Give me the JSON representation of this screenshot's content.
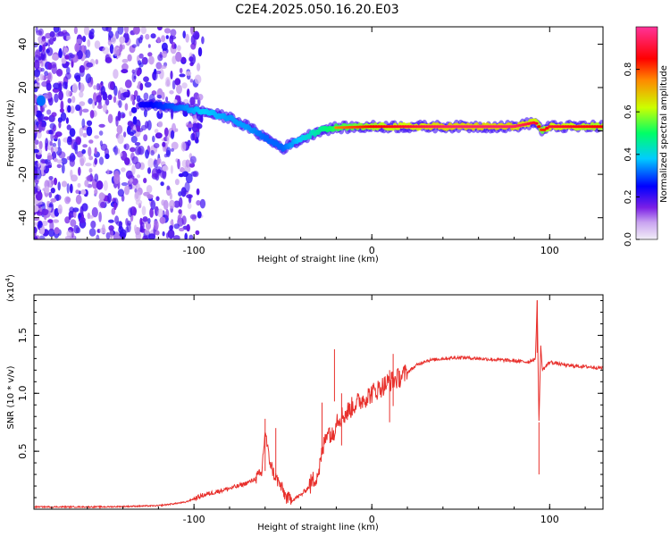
{
  "title": "C2E4.2025.050.16.20.E03",
  "colors": {
    "line": "#e8302c",
    "colormap": [
      "#f2eef7",
      "#8a2be2",
      "#4b00ff",
      "#0000ff",
      "#00ccff",
      "#00ff66",
      "#ccff00",
      "#ff8800",
      "#ff0000",
      "#ff3399"
    ]
  },
  "chart_data": [
    {
      "type": "heatmap",
      "xlabel": "Height of straight line (km)",
      "ylabel": "Frequency (Hz)",
      "xlim": [
        -190,
        130
      ],
      "ylim": [
        -50,
        48
      ],
      "xticks": [
        -100,
        0,
        100
      ],
      "yticks": [
        -40,
        -20,
        0,
        20,
        40
      ],
      "colorbar": {
        "label": "Normalized spectral amplitude",
        "range": [
          0,
          1
        ],
        "ticks": [
          "0.0",
          "0.2",
          "0.4",
          "0.6",
          "0.8"
        ]
      },
      "ridge": [
        {
          "x": -190,
          "y": 14,
          "amp": 0.25
        },
        {
          "x": -125,
          "y": 12,
          "amp": 0.35
        },
        {
          "x": -110,
          "y": 11,
          "amp": 0.45
        },
        {
          "x": -95,
          "y": 9,
          "amp": 0.55
        },
        {
          "x": -80,
          "y": 6,
          "amp": 0.5
        },
        {
          "x": -70,
          "y": 2,
          "amp": 0.5
        },
        {
          "x": -60,
          "y": -3,
          "amp": 0.45
        },
        {
          "x": -50,
          "y": -8,
          "amp": 0.45
        },
        {
          "x": -40,
          "y": -4,
          "amp": 0.55
        },
        {
          "x": -30,
          "y": 0,
          "amp": 0.65
        },
        {
          "x": -20,
          "y": 1.5,
          "amp": 0.75
        },
        {
          "x": 0,
          "y": 2,
          "amp": 0.85
        },
        {
          "x": 40,
          "y": 2,
          "amp": 0.95
        },
        {
          "x": 80,
          "y": 2,
          "amp": 0.95
        },
        {
          "x": 92,
          "y": 4,
          "amp": 0.9
        },
        {
          "x": 96,
          "y": 0,
          "amp": 0.8
        },
        {
          "x": 100,
          "y": 2,
          "amp": 0.9
        },
        {
          "x": 130,
          "y": 2,
          "amp": 0.85
        }
      ]
    },
    {
      "type": "line",
      "xlabel": "Height of straight line (km)",
      "ylabel": "SNR (10 * v/v)",
      "scale_label": "(x10",
      "scale_exp": "4",
      "scale_close": ")",
      "xlim": [
        -190,
        130
      ],
      "ylim": [
        0,
        1.85
      ],
      "xticks": [
        -100,
        0,
        100
      ],
      "yticks": [
        0.5,
        1.0,
        1.5
      ],
      "ytick_labels": [
        "0.5",
        "1.0",
        "1.5"
      ],
      "series": [
        {
          "x": [
            -190,
            -150,
            -120,
            -105,
            -95,
            -85,
            -75,
            -68,
            -62,
            -60,
            -58,
            -55,
            -52,
            -48,
            -45,
            -40,
            -35,
            -30,
            -27,
            -25,
            -22,
            -20,
            -15,
            -10,
            -5,
            0,
            5,
            10,
            15,
            20,
            25,
            30,
            40,
            50,
            60,
            70,
            80,
            88,
            92,
            93,
            94,
            95,
            96,
            100,
            110,
            120,
            130
          ],
          "y": [
            0.02,
            0.02,
            0.03,
            0.06,
            0.12,
            0.16,
            0.2,
            0.24,
            0.3,
            0.68,
            0.45,
            0.3,
            0.22,
            0.1,
            0.08,
            0.12,
            0.2,
            0.32,
            0.55,
            0.7,
            0.62,
            0.78,
            0.82,
            0.9,
            0.95,
            1.0,
            1.05,
            1.1,
            1.13,
            1.18,
            1.24,
            1.28,
            1.3,
            1.31,
            1.3,
            1.29,
            1.28,
            1.27,
            1.3,
            1.8,
            0.75,
            1.4,
            1.2,
            1.27,
            1.24,
            1.23,
            1.22
          ]
        }
      ],
      "spikes": [
        {
          "x": -60,
          "y": 0.78
        },
        {
          "x": -54,
          "y": 0.7
        },
        {
          "x": -28,
          "y": 0.92
        },
        {
          "x": -21,
          "y": 1.38
        },
        {
          "x": -17,
          "y": 1.0
        },
        {
          "x": 10,
          "y": 1.2
        },
        {
          "x": 12,
          "y": 1.34
        },
        {
          "x": 93,
          "y": 1.8
        },
        {
          "x": 94,
          "y": 0.75
        }
      ]
    }
  ]
}
